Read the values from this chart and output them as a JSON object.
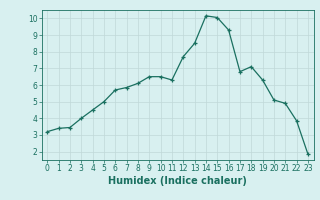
{
  "x": [
    0,
    1,
    2,
    3,
    4,
    5,
    6,
    7,
    8,
    9,
    10,
    11,
    12,
    13,
    14,
    15,
    16,
    17,
    18,
    19,
    20,
    21,
    22,
    23
  ],
  "y": [
    3.2,
    3.4,
    3.45,
    4.0,
    4.5,
    5.0,
    5.7,
    5.85,
    6.1,
    6.5,
    6.5,
    6.3,
    7.7,
    8.5,
    10.15,
    10.05,
    9.3,
    6.8,
    7.1,
    6.3,
    5.1,
    4.9,
    3.85,
    1.85
  ],
  "xlim": [
    -0.5,
    23.5
  ],
  "ylim": [
    1.5,
    10.5
  ],
  "xticks": [
    0,
    1,
    2,
    3,
    4,
    5,
    6,
    7,
    8,
    9,
    10,
    11,
    12,
    13,
    14,
    15,
    16,
    17,
    18,
    19,
    20,
    21,
    22,
    23
  ],
  "yticks": [
    2,
    3,
    4,
    5,
    6,
    7,
    8,
    9,
    10
  ],
  "xlabel": "Humidex (Indice chaleur)",
  "line_color": "#1a7060",
  "marker": "+",
  "bg_color": "#d8f0f0",
  "grid_color": "#c0d8d8",
  "tick_fontsize": 5.5,
  "xlabel_fontsize": 7,
  "title": ""
}
